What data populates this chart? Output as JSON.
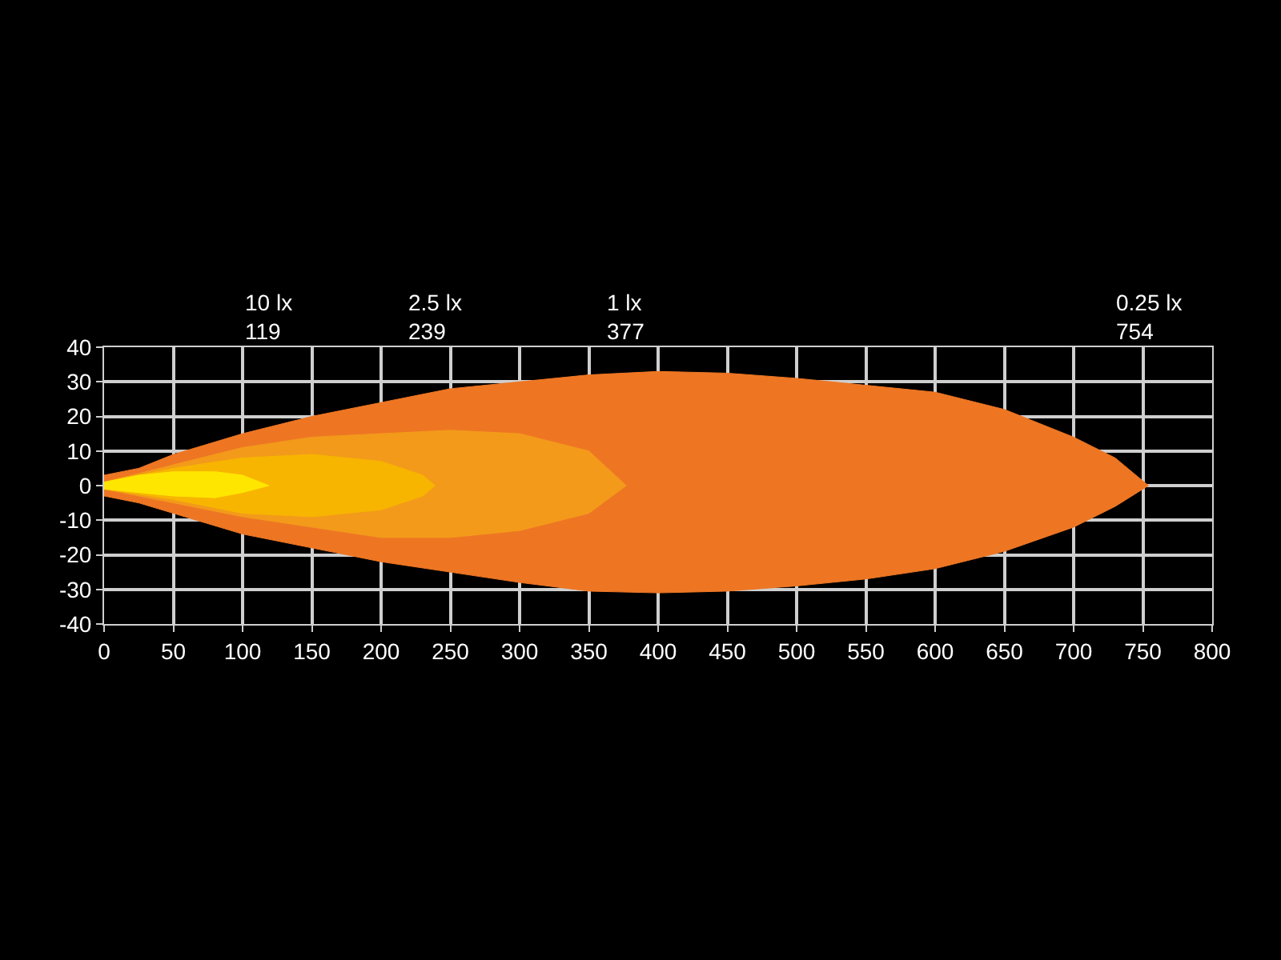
{
  "chart_data": {
    "type": "area",
    "xlim": [
      0,
      800
    ],
    "xticks": [
      0,
      50,
      100,
      150,
      200,
      250,
      300,
      350,
      400,
      450,
      500,
      550,
      600,
      650,
      700,
      750,
      800
    ],
    "ylim": [
      -40,
      40
    ],
    "yticks": [
      -40,
      -30,
      -20,
      -10,
      0,
      10,
      20,
      30,
      40
    ],
    "grid": true,
    "series": [
      {
        "color": "#ee7623",
        "x": [
          0,
          25,
          50,
          100,
          150,
          200,
          250,
          300,
          350,
          400,
          450,
          500,
          550,
          600,
          650,
          700,
          730,
          754
        ],
        "values": [
          3,
          5,
          9,
          15,
          20,
          24,
          28,
          30,
          32,
          33,
          32.5,
          31,
          29,
          27,
          22,
          14,
          8,
          0
        ]
      },
      {
        "color": "#ee7623",
        "x": [
          0,
          25,
          50,
          100,
          150,
          200,
          250,
          300,
          350,
          400,
          450,
          500,
          550,
          600,
          650,
          700,
          730,
          754
        ],
        "values": [
          -3,
          -5,
          -8,
          -14,
          -18,
          -22,
          -25,
          -28,
          -30.5,
          -31,
          -30.5,
          -29,
          -27,
          -24,
          -19,
          -12,
          -6,
          0
        ]
      },
      {
        "color": "#f39a1a",
        "x": [
          0,
          50,
          100,
          150,
          200,
          250,
          300,
          350,
          377
        ],
        "values": [
          1,
          6,
          11,
          14,
          15,
          16,
          15,
          10,
          0
        ]
      },
      {
        "color": "#f39a1a",
        "x": [
          0,
          50,
          100,
          150,
          200,
          250,
          300,
          350,
          377
        ],
        "values": [
          -1,
          -5,
          -9,
          -12,
          -15,
          -15,
          -13,
          -8,
          0
        ]
      },
      {
        "color": "#f8b500",
        "x": [
          0,
          50,
          100,
          150,
          200,
          230,
          239
        ],
        "values": [
          1,
          5,
          8,
          9,
          7,
          3,
          0
        ]
      },
      {
        "color": "#f8b500",
        "x": [
          0,
          50,
          100,
          150,
          200,
          230,
          239
        ],
        "values": [
          -1,
          -4,
          -8,
          -9,
          -7,
          -3,
          0
        ]
      },
      {
        "color": "#ffe600",
        "x": [
          0,
          25,
          50,
          80,
          100,
          119
        ],
        "values": [
          1,
          3,
          4,
          4,
          3,
          0
        ]
      },
      {
        "color": "#ffe600",
        "x": [
          0,
          25,
          50,
          80,
          100,
          119
        ],
        "values": [
          -1,
          -2,
          -3,
          -3.5,
          -2,
          0
        ]
      }
    ],
    "annotations": [
      "10 lx\n119",
      "2.5 lx\n239",
      "1 lx\n377",
      "0.25 lx\n754"
    ]
  }
}
